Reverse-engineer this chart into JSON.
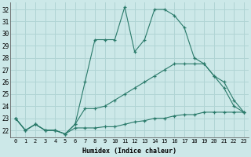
{
  "xlabel": "Humidex (Indice chaleur)",
  "x_ticks": [
    0,
    1,
    2,
    3,
    4,
    5,
    6,
    7,
    8,
    9,
    10,
    11,
    12,
    13,
    14,
    15,
    16,
    17,
    18,
    19,
    20,
    21,
    22,
    23
  ],
  "y_ticks": [
    22,
    23,
    24,
    25,
    26,
    27,
    28,
    29,
    30,
    31,
    32
  ],
  "xlim": [
    -0.5,
    23.5
  ],
  "ylim": [
    21.4,
    32.6
  ],
  "bg_color": "#cce8e8",
  "line_color": "#2a7a6a",
  "grid_color": "#b0d4d4",
  "series": {
    "main": [
      23.0,
      22.0,
      22.5,
      22.0,
      22.0,
      21.7,
      22.5,
      26.0,
      29.5,
      29.5,
      29.5,
      32.2,
      28.5,
      29.5,
      32.0,
      32.0,
      31.5,
      30.5,
      28.0,
      27.5,
      26.5,
      26.0,
      24.5,
      23.5
    ],
    "mid": [
      23.0,
      22.0,
      22.5,
      22.0,
      22.0,
      21.7,
      22.5,
      23.8,
      23.8,
      24.0,
      24.5,
      25.0,
      25.5,
      26.0,
      26.5,
      27.0,
      27.5,
      27.5,
      27.5,
      27.5,
      26.5,
      25.5,
      24.0,
      23.5
    ],
    "low": [
      23.0,
      22.0,
      22.5,
      22.0,
      22.0,
      21.7,
      22.2,
      22.2,
      22.2,
      22.3,
      22.3,
      22.5,
      22.7,
      22.8,
      23.0,
      23.0,
      23.2,
      23.3,
      23.3,
      23.5,
      23.5,
      23.5,
      23.5,
      23.5
    ]
  }
}
